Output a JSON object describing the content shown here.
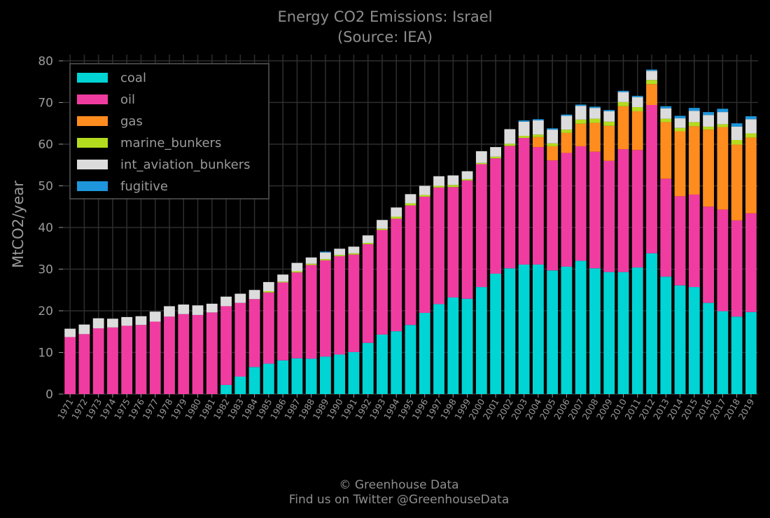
{
  "chart_data": {
    "type": "bar",
    "stacked": true,
    "title": "Energy CO2 Emissions: Israel",
    "subtitle": "(Source: IEA)",
    "ylabel": "MtCO2/year",
    "xlabel": "",
    "ylim": [
      0,
      80
    ],
    "yticks": [
      0,
      10,
      20,
      30,
      40,
      50,
      60,
      70,
      80
    ],
    "grid": true,
    "legend_position": "top-left",
    "categories": [
      "1971",
      "1972",
      "1973",
      "1974",
      "1975",
      "1976",
      "1977",
      "1978",
      "1979",
      "1980",
      "1981",
      "1982",
      "1983",
      "1984",
      "1985",
      "1986",
      "1987",
      "1988",
      "1989",
      "1990",
      "1991",
      "1992",
      "1993",
      "1994",
      "1995",
      "1996",
      "1997",
      "1998",
      "1999",
      "2000",
      "2001",
      "2002",
      "2003",
      "2004",
      "2005",
      "2006",
      "2007",
      "2008",
      "2009",
      "2010",
      "2011",
      "2012",
      "2013",
      "2014",
      "2015",
      "2016",
      "2017",
      "2018",
      "2019"
    ],
    "series": [
      {
        "name": "coal",
        "color": "#00d4d4",
        "values": [
          0,
          0,
          0,
          0,
          0,
          0,
          0,
          0,
          0,
          0,
          0,
          2.2,
          4.2,
          6.5,
          7.3,
          8.1,
          8.6,
          8.5,
          9.0,
          9.5,
          10.1,
          12.3,
          14.3,
          15.1,
          16.6,
          19.5,
          21.6,
          23.2,
          22.9,
          25.7,
          28.9,
          30.2,
          31.1,
          31.1,
          29.7,
          30.6,
          32.0,
          30.2,
          29.3,
          29.3,
          30.4,
          33.8,
          28.2,
          26.1,
          25.7,
          21.9,
          19.9,
          18.6,
          19.7
        ]
      },
      {
        "name": "oil",
        "color": "#f03ca0",
        "values": [
          13.7,
          14.4,
          15.8,
          16.0,
          16.4,
          16.6,
          17.4,
          18.6,
          19.2,
          19.0,
          19.6,
          18.9,
          17.7,
          16.3,
          17.1,
          18.7,
          20.6,
          22.5,
          23.1,
          23.6,
          23.4,
          23.7,
          25.1,
          27.0,
          28.7,
          27.9,
          28.0,
          26.5,
          28.4,
          29.5,
          27.7,
          29.4,
          30.4,
          28.2,
          26.4,
          27.3,
          27.5,
          28.0,
          26.7,
          29.5,
          28.2,
          35.6,
          23.5,
          21.4,
          22.2,
          23.1,
          24.4,
          23.1,
          23.7
        ]
      },
      {
        "name": "gas",
        "color": "#ff8c1e",
        "values": [
          0,
          0,
          0,
          0,
          0,
          0,
          0,
          0,
          0,
          0,
          0,
          0,
          0,
          0,
          0,
          0,
          0,
          0,
          0,
          0,
          0,
          0,
          0,
          0,
          0,
          0,
          0,
          0,
          0,
          0,
          0,
          0,
          0,
          2.4,
          3.4,
          4.8,
          5.4,
          6.9,
          8.4,
          10.3,
          9.3,
          5.0,
          13.6,
          15.6,
          16.4,
          18.5,
          19.8,
          18.2,
          18.2
        ]
      },
      {
        "name": "marine_bunkers",
        "color": "#b4dc1e",
        "values": [
          0,
          0,
          0,
          0,
          0,
          0,
          0,
          0,
          0,
          0,
          0,
          0,
          0,
          0,
          0.3,
          0.2,
          0.3,
          0.3,
          0.3,
          0.3,
          0.3,
          0.3,
          0.3,
          0.5,
          0.5,
          0.4,
          0.4,
          0.5,
          0.3,
          0.3,
          0.4,
          0.5,
          0.5,
          0.6,
          0.7,
          0.8,
          1.0,
          1.0,
          1.0,
          1.0,
          1.0,
          1.0,
          0.8,
          0.8,
          1.0,
          0.7,
          0.7,
          1.1,
          1.0
        ]
      },
      {
        "name": "int_aviation_bunkers",
        "color": "#dcdcdc",
        "values": [
          2.0,
          2.3,
          2.4,
          2.1,
          2.1,
          2.1,
          2.4,
          2.5,
          2.3,
          2.3,
          2.1,
          2.3,
          2.2,
          2.2,
          2.2,
          1.7,
          2.0,
          1.5,
          1.6,
          1.5,
          1.6,
          1.8,
          2.1,
          2.2,
          2.2,
          2.2,
          2.3,
          2.3,
          1.9,
          2.8,
          2.3,
          3.5,
          3.4,
          3.4,
          3.3,
          3.3,
          3.3,
          2.6,
          2.5,
          2.4,
          2.4,
          2.2,
          2.5,
          2.3,
          2.7,
          2.8,
          2.9,
          3.2,
          3.4
        ]
      },
      {
        "name": "fugitive",
        "color": "#1e96dc",
        "values": [
          0,
          0,
          0,
          0,
          0,
          0,
          0,
          0,
          0,
          0,
          0,
          0,
          0,
          0,
          0,
          0,
          0,
          0,
          0.2,
          0,
          0,
          0,
          0,
          0,
          0,
          0,
          0,
          0,
          0,
          0,
          0,
          0,
          0.3,
          0.3,
          0.3,
          0.3,
          0.3,
          0.3,
          0.3,
          0.3,
          0.3,
          0.3,
          0.5,
          0.6,
          0.7,
          0.7,
          0.8,
          0.8,
          0.7
        ]
      }
    ]
  },
  "footer": {
    "line1": "© Greenhouse Data",
    "line2": "Find us on Twitter @GreenhouseData"
  }
}
